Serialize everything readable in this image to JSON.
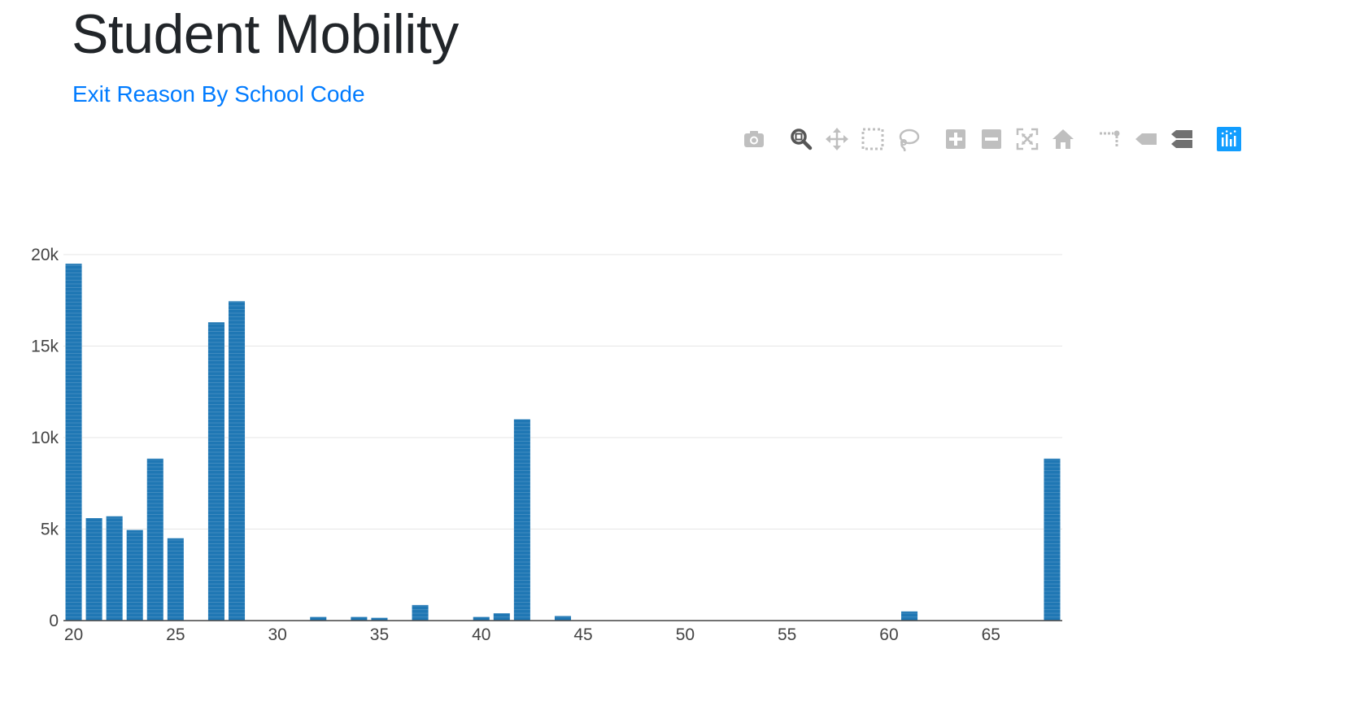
{
  "header": {
    "title": "Student Mobility",
    "subtitle": "Exit Reason By School Code"
  },
  "modebar": {
    "groups": [
      [
        {
          "name": "camera-icon"
        }
      ],
      [
        {
          "name": "zoom-icon",
          "active": true
        },
        {
          "name": "pan-icon"
        },
        {
          "name": "box-select-icon"
        },
        {
          "name": "lasso-select-icon"
        }
      ],
      [
        {
          "name": "zoom-in-icon"
        },
        {
          "name": "zoom-out-icon"
        },
        {
          "name": "autoscale-icon"
        },
        {
          "name": "reset-axes-icon"
        }
      ],
      [
        {
          "name": "toggle-spike-lines-icon"
        },
        {
          "name": "hover-closest-icon"
        },
        {
          "name": "hover-compare-icon"
        }
      ],
      [
        {
          "name": "plotly-logo-icon"
        }
      ]
    ],
    "colors": {
      "inactive": "#bfbfbf",
      "active": "#555555",
      "logo": "#119dff"
    }
  },
  "chart_data": {
    "type": "bar",
    "title": "",
    "xlabel": "",
    "ylabel": "",
    "x": [
      20,
      21,
      22,
      23,
      24,
      25,
      27,
      28,
      32,
      34,
      35,
      37,
      40,
      41,
      42,
      44,
      61,
      68
    ],
    "values": [
      19500,
      5600,
      5700,
      4950,
      8850,
      4500,
      16300,
      17450,
      200,
      200,
      150,
      850,
      200,
      400,
      11000,
      250,
      500,
      8850
    ],
    "xlim": [
      19.5,
      68.5
    ],
    "ylim": [
      0,
      20000
    ],
    "x_ticks": [
      20,
      25,
      30,
      35,
      40,
      45,
      50,
      55,
      60,
      65
    ],
    "x_tick_labels": [
      "20",
      "25",
      "30",
      "35",
      "40",
      "45",
      "50",
      "55",
      "60",
      "65"
    ],
    "y_ticks": [
      0,
      5000,
      10000,
      15000,
      20000
    ],
    "y_tick_labels": [
      "0",
      "5k",
      "10k",
      "15k",
      "20k"
    ],
    "grid": true,
    "bar_color": "#1f77b4"
  }
}
